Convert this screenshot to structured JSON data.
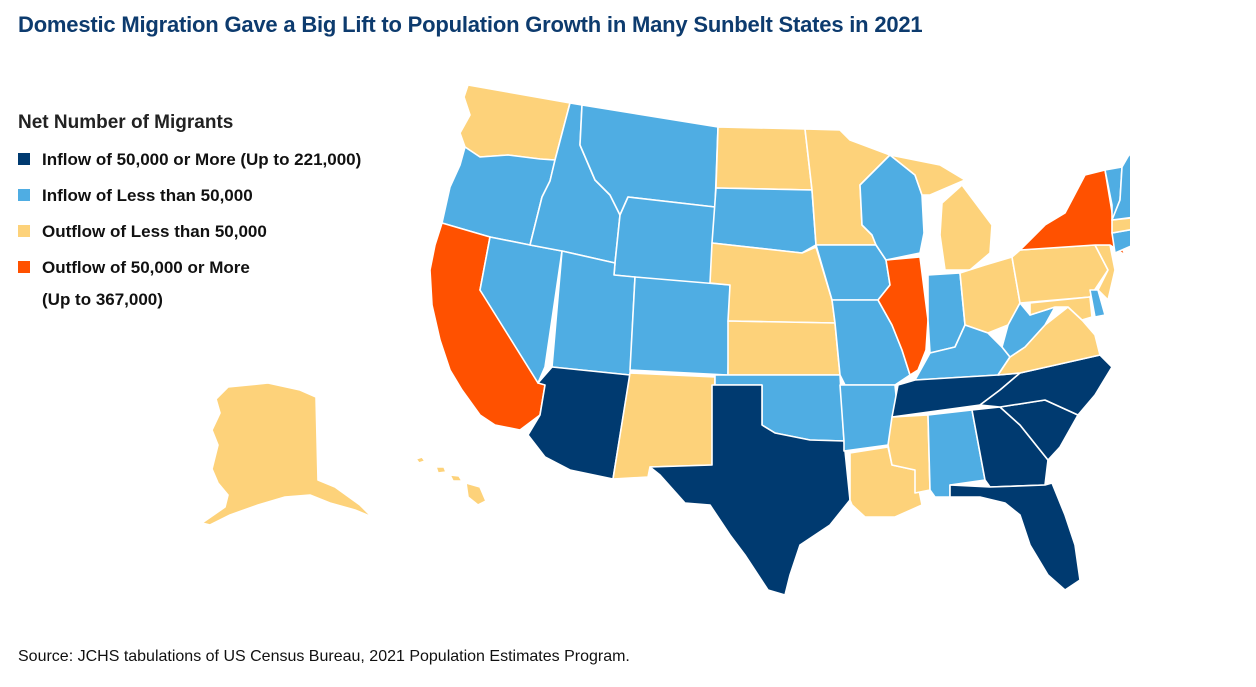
{
  "title": "Domestic Migration Gave a Big Lift to Population Growth in Many Sunbelt States in 2021",
  "legend": {
    "title": "Net Number of Migrants",
    "items": [
      {
        "key": "inflow_high",
        "line1": "Inflow of 50,000 or More (Up to 221,000)",
        "line2": "",
        "color": "#003a70"
      },
      {
        "key": "inflow_low",
        "line1": "Inflow of Less than 50,000",
        "line2": "",
        "color": "#4fade3"
      },
      {
        "key": "outflow_low",
        "line1": "Outflow of Less than 50,000",
        "line2": "",
        "color": "#fdd27a"
      },
      {
        "key": "outflow_high",
        "line1": "Outflow of 50,000 or More",
        "line2": "(Up to 367,000)",
        "color": "#ff5100"
      }
    ]
  },
  "states": [
    {
      "code": "WA",
      "category": "outflow_low"
    },
    {
      "code": "OR",
      "category": "inflow_low"
    },
    {
      "code": "CA",
      "category": "outflow_high"
    },
    {
      "code": "NV",
      "category": "inflow_low"
    },
    {
      "code": "ID",
      "category": "inflow_low"
    },
    {
      "code": "MT",
      "category": "inflow_low"
    },
    {
      "code": "WY",
      "category": "inflow_low"
    },
    {
      "code": "UT",
      "category": "inflow_low"
    },
    {
      "code": "AZ",
      "category": "inflow_high"
    },
    {
      "code": "CO",
      "category": "inflow_low"
    },
    {
      "code": "NM",
      "category": "outflow_low"
    },
    {
      "code": "ND",
      "category": "outflow_low"
    },
    {
      "code": "SD",
      "category": "inflow_low"
    },
    {
      "code": "NE",
      "category": "outflow_low"
    },
    {
      "code": "KS",
      "category": "outflow_low"
    },
    {
      "code": "OK",
      "category": "inflow_low"
    },
    {
      "code": "TX",
      "category": "inflow_high"
    },
    {
      "code": "MN",
      "category": "outflow_low"
    },
    {
      "code": "IA",
      "category": "inflow_low"
    },
    {
      "code": "MO",
      "category": "inflow_low"
    },
    {
      "code": "AR",
      "category": "inflow_low"
    },
    {
      "code": "LA",
      "category": "outflow_low"
    },
    {
      "code": "WI",
      "category": "inflow_low"
    },
    {
      "code": "IL",
      "category": "outflow_high"
    },
    {
      "code": "MI",
      "category": "outflow_low"
    },
    {
      "code": "IN",
      "category": "inflow_low"
    },
    {
      "code": "OH",
      "category": "outflow_low"
    },
    {
      "code": "KY",
      "category": "inflow_low"
    },
    {
      "code": "TN",
      "category": "inflow_high"
    },
    {
      "code": "MS",
      "category": "outflow_low"
    },
    {
      "code": "AL",
      "category": "inflow_low"
    },
    {
      "code": "GA",
      "category": "inflow_high"
    },
    {
      "code": "FL",
      "category": "inflow_high"
    },
    {
      "code": "SC",
      "category": "inflow_high"
    },
    {
      "code": "NC",
      "category": "inflow_high"
    },
    {
      "code": "VA",
      "category": "outflow_low"
    },
    {
      "code": "WV",
      "category": "inflow_low"
    },
    {
      "code": "MD",
      "category": "outflow_low"
    },
    {
      "code": "DE",
      "category": "inflow_low"
    },
    {
      "code": "PA",
      "category": "outflow_low"
    },
    {
      "code": "NJ",
      "category": "outflow_low"
    },
    {
      "code": "NY",
      "category": "outflow_high"
    },
    {
      "code": "CT",
      "category": "inflow_low"
    },
    {
      "code": "RI",
      "category": "inflow_low"
    },
    {
      "code": "MA",
      "category": "outflow_low"
    },
    {
      "code": "VT",
      "category": "inflow_low"
    },
    {
      "code": "NH",
      "category": "inflow_low"
    },
    {
      "code": "ME",
      "category": "inflow_low"
    },
    {
      "code": "AK",
      "category": "outflow_low"
    },
    {
      "code": "HI",
      "category": "outflow_low"
    }
  ],
  "source": "Source: JCHS tabulations of US Census Bureau, 2021 Population Estimates Program."
}
